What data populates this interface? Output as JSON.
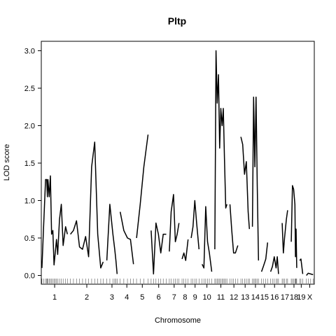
{
  "chart_data": {
    "type": "line",
    "title": "Pltp",
    "xlabel": "Chromosome",
    "ylabel": "LOD score",
    "ylim": [
      -0.1,
      3.1
    ],
    "yticks": [
      0.0,
      0.5,
      1.0,
      1.5,
      2.0,
      2.5,
      3.0
    ],
    "ytick_labels": [
      "0.0",
      "0.5",
      "1.0",
      "1.5",
      "2.0",
      "2.5",
      "3.0"
    ],
    "grid": false,
    "legend": "none",
    "colors": {
      "line": "#000000",
      "axis": "#000000",
      "rug": "#555555"
    },
    "chromosomes": [
      {
        "label": "1",
        "start": 1,
        "end": 43
      },
      {
        "label": "2",
        "start": 48,
        "end": 102
      },
      {
        "label": "3",
        "start": 108,
        "end": 125
      },
      {
        "label": "4",
        "start": 130,
        "end": 152
      },
      {
        "label": "5",
        "start": 157,
        "end": 176
      },
      {
        "label": "6",
        "start": 181,
        "end": 206
      },
      {
        "label": "7",
        "start": 211,
        "end": 227
      },
      {
        "label": "8",
        "start": 232,
        "end": 242
      },
      {
        "label": "9",
        "start": 247,
        "end": 260
      },
      {
        "label": "10",
        "start": 265,
        "end": 281
      },
      {
        "label": "11",
        "start": 286,
        "end": 306
      },
      {
        "label": "12",
        "start": 311,
        "end": 324
      },
      {
        "label": "13",
        "start": 329,
        "end": 343
      },
      {
        "label": "14",
        "start": 348,
        "end": 358
      },
      {
        "label": "15",
        "start": 363,
        "end": 373
      },
      {
        "label": "16",
        "start": 378,
        "end": 391
      },
      {
        "label": "17",
        "start": 397,
        "end": 406
      },
      {
        "label": "18",
        "start": 412,
        "end": 421
      },
      {
        "label": "19",
        "start": 426,
        "end": 431
      },
      {
        "label": "X",
        "start": 437,
        "end": 448
      }
    ],
    "series": [
      {
        "x": [
          1,
          4,
          7,
          9,
          10,
          11,
          13,
          15,
          17,
          19,
          21,
          23,
          25,
          27,
          30,
          33,
          36,
          40,
          43
        ],
        "values": [
          0.1,
          0.7,
          1.28,
          1.28,
          1.05,
          1.28,
          1.05,
          1.33,
          0.55,
          0.6,
          0.14,
          0.3,
          0.48,
          0.28,
          0.75,
          0.95,
          0.4,
          0.65,
          0.55
        ]
      },
      {
        "x": [
          48,
          53,
          58,
          63,
          68,
          73,
          78,
          83,
          88,
          93,
          98,
          102
        ],
        "values": [
          0.55,
          0.6,
          0.73,
          0.38,
          0.35,
          0.52,
          0.25,
          1.45,
          1.78,
          0.55,
          0.1,
          0.18
        ]
      },
      {
        "x": [
          108,
          113,
          118,
          121,
          123,
          125
        ],
        "values": [
          0.2,
          0.95,
          0.55,
          0.35,
          0.2,
          0.02
        ]
      },
      {
        "x": [
          130,
          136,
          142,
          147,
          152
        ],
        "values": [
          0.85,
          0.6,
          0.5,
          0.48,
          0.15
        ]
      },
      {
        "x": [
          157,
          163,
          169,
          176
        ],
        "values": [
          0.5,
          0.95,
          1.45,
          1.88
        ]
      },
      {
        "x": [
          181,
          185,
          189,
          193,
          197,
          201,
          206
        ],
        "values": [
          0.6,
          0.02,
          0.7,
          0.55,
          0.3,
          0.55,
          0.55
        ]
      },
      {
        "x": [
          211,
          214,
          218,
          221,
          224,
          227
        ],
        "values": [
          0.32,
          0.85,
          1.08,
          0.45,
          0.55,
          0.7
        ]
      },
      {
        "x": [
          232,
          235,
          238,
          242
        ],
        "values": [
          0.22,
          0.3,
          0.2,
          0.48
        ]
      },
      {
        "x": [
          247,
          250,
          253,
          256,
          260
        ],
        "values": [
          0.5,
          0.65,
          1.0,
          0.7,
          0.35
        ]
      },
      {
        "x": [
          265,
          268,
          271,
          274,
          277,
          281
        ],
        "values": [
          0.15,
          0.1,
          0.92,
          0.45,
          0.3,
          0.05
        ]
      },
      {
        "x": [
          286,
          288,
          290,
          292,
          294,
          296,
          298,
          300,
          302,
          304,
          306
        ],
        "values": [
          0.35,
          3.0,
          2.3,
          2.68,
          1.7,
          2.23,
          2.0,
          2.23,
          1.55,
          0.9,
          0.95
        ]
      },
      {
        "x": [
          311,
          314,
          317,
          320,
          324
        ],
        "values": [
          0.95,
          0.6,
          0.3,
          0.3,
          0.4
        ]
      },
      {
        "x": [
          329,
          332,
          335,
          338,
          341,
          343
        ],
        "values": [
          1.85,
          1.75,
          1.35,
          1.52,
          0.85,
          0.62
        ]
      },
      {
        "x": [
          348,
          350,
          352,
          354,
          356,
          358
        ],
        "values": [
          0.65,
          2.38,
          1.45,
          2.38,
          1.2,
          0.2
        ]
      },
      {
        "x": [
          363,
          366,
          370,
          373
        ],
        "values": [
          0.05,
          0.12,
          0.22,
          0.44
        ]
      },
      {
        "x": [
          378,
          381,
          384,
          387,
          389,
          391
        ],
        "values": [
          0.05,
          0.12,
          0.25,
          0.1,
          0.25,
          0.02
        ]
      },
      {
        "x": [
          397,
          399,
          401,
          404,
          406
        ],
        "values": [
          0.7,
          0.3,
          0.5,
          0.75,
          0.87
        ]
      },
      {
        "x": [
          412,
          414,
          416,
          418,
          419,
          420,
          421
        ],
        "values": [
          0.45,
          1.2,
          1.15,
          0.95,
          0.25,
          0.62,
          0.1
        ]
      },
      {
        "x": [
          426,
          428,
          431
        ],
        "values": [
          0.2,
          0.22,
          0.02
        ]
      },
      {
        "x": [
          437,
          440,
          444,
          448
        ],
        "values": [
          0.0,
          0.03,
          0.02,
          0.01
        ]
      }
    ]
  }
}
